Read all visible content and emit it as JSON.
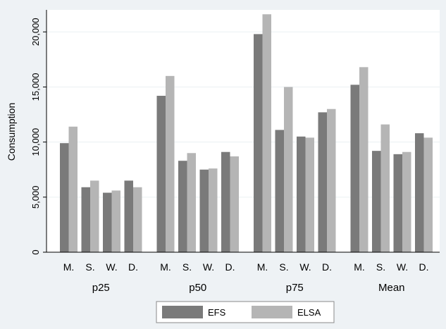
{
  "chart_data": {
    "type": "bar",
    "ylabel": "Consumption",
    "ylim": [
      0,
      22000
    ],
    "yticks": [
      0,
      5000,
      10000,
      15000,
      20000
    ],
    "ytick_labels": [
      "0",
      "5,000",
      "10,000",
      "15,000",
      "20,000"
    ],
    "grid": true,
    "groups": [
      {
        "label": "p25",
        "categories": [
          "M.",
          "S.",
          "W.",
          "D."
        ]
      },
      {
        "label": "p50",
        "categories": [
          "M.",
          "S.",
          "W.",
          "D."
        ]
      },
      {
        "label": "p75",
        "categories": [
          "M.",
          "S.",
          "W.",
          "D."
        ]
      },
      {
        "label": "Mean",
        "categories": [
          "M.",
          "S.",
          "W.",
          "D."
        ]
      }
    ],
    "series": [
      {
        "name": "EFS",
        "color": "#7a7a7a",
        "values": [
          [
            9900,
            5900,
            5400,
            6500
          ],
          [
            14200,
            8300,
            7500,
            9100
          ],
          [
            19800,
            11100,
            10500,
            12700
          ],
          [
            15200,
            9200,
            8900,
            10800
          ]
        ]
      },
      {
        "name": "ELSA",
        "color": "#b5b5b5",
        "values": [
          [
            11400,
            6500,
            5600,
            5900
          ],
          [
            16000,
            9000,
            7600,
            8700
          ],
          [
            21600,
            15000,
            10400,
            13000
          ],
          [
            16800,
            11600,
            9100,
            10400
          ]
        ]
      }
    ],
    "legend": {
      "position": "bottom-center"
    }
  },
  "colors": {
    "background": "#eef2f5",
    "plot_background": "#ffffff",
    "grid": "#eaf0f3",
    "axis": "#000000"
  }
}
